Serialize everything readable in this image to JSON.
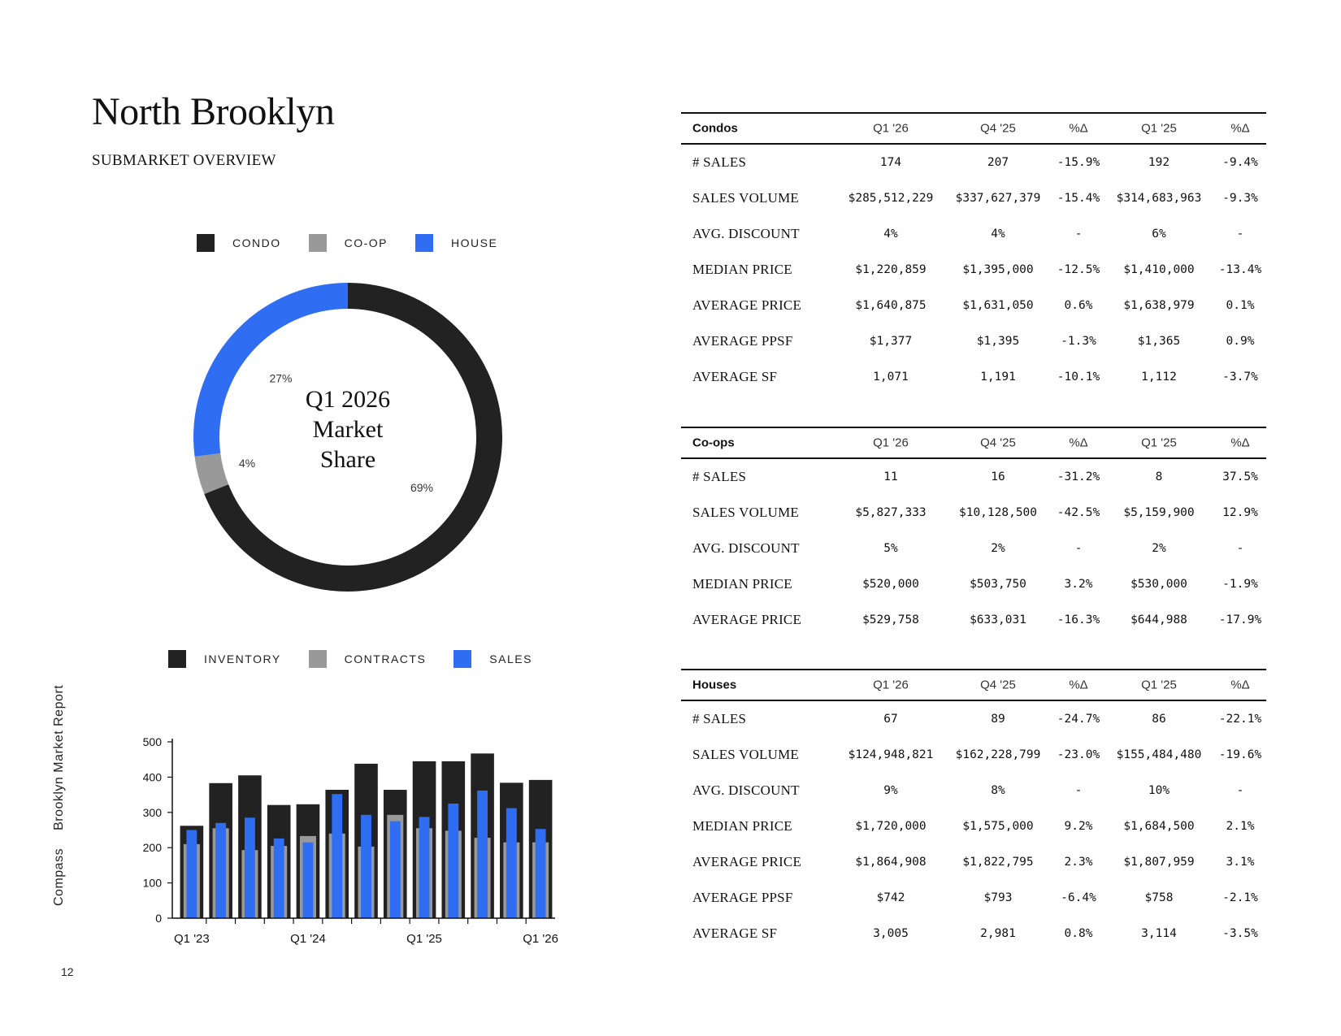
{
  "header": {
    "title": "North Brooklyn",
    "subtitle": "SUBMARKET OVERVIEW"
  },
  "colors": {
    "condo": "#222222",
    "coop": "#999999",
    "house": "#2f6ef2",
    "inventory": "#222222",
    "contracts": "#999999",
    "sales": "#2f6ef2"
  },
  "share_legend": [
    {
      "label": "CONDO",
      "color": "#222222"
    },
    {
      "label": "CO-OP",
      "color": "#999999"
    },
    {
      "label": "HOUSE",
      "color": "#2f6ef2"
    }
  ],
  "trend_legend": [
    {
      "label": "INVENTORY",
      "color": "#222222"
    },
    {
      "label": "CONTRACTS",
      "color": "#999999"
    },
    {
      "label": "SALES",
      "color": "#2f6ef2"
    }
  ],
  "chart_data": [
    {
      "type": "pie",
      "center_text": [
        "Q1 2026",
        "Market",
        "Share"
      ],
      "categories": [
        "CONDO",
        "CO-OP",
        "HOUSE"
      ],
      "values": [
        69,
        4,
        27
      ],
      "labels": [
        "69%",
        "4%",
        "27%"
      ],
      "colors": [
        "#222222",
        "#999999",
        "#2f6ef2"
      ],
      "legend_position": "top"
    },
    {
      "type": "bar",
      "categories": [
        "Q1 '23",
        "Q2 '23",
        "Q3 '23",
        "Q4 '23",
        "Q1 '24",
        "Q2 '24",
        "Q3 '24",
        "Q4 '24",
        "Q1 '25",
        "Q2 '25",
        "Q3 '25",
        "Q4 '25",
        "Q1 '26"
      ],
      "x_tick_labels": [
        "Q1 '23",
        "Q1 '24",
        "Q1 '25",
        "Q1 '26"
      ],
      "series": [
        {
          "name": "INVENTORY",
          "values": [
            262,
            383,
            405,
            321,
            323,
            364,
            438,
            364,
            445,
            445,
            467,
            384,
            392
          ]
        },
        {
          "name": "CONTRACTS",
          "values": [
            210,
            255,
            193,
            205,
            233,
            240,
            203,
            293,
            255,
            248,
            228,
            215,
            215
          ]
        },
        {
          "name": "SALES",
          "values": [
            250,
            270,
            285,
            226,
            215,
            352,
            293,
            275,
            287,
            325,
            362,
            312,
            253
          ]
        }
      ],
      "ylim": [
        0,
        500
      ],
      "yticks": [
        0,
        100,
        200,
        300,
        400,
        500
      ],
      "legend_position": "top",
      "grid": false
    }
  ],
  "tables": {
    "condos": {
      "headers": [
        "Condos",
        "Q1 '26",
        "Q4 '25",
        "%Δ",
        "Q1 '25",
        "%Δ"
      ],
      "rows": [
        [
          "# SALES",
          "174",
          "207",
          "-15.9%",
          "192",
          "-9.4%"
        ],
        [
          "SALES VOLUME",
          "$285,512,229",
          "$337,627,379",
          "-15.4%",
          "$314,683,963",
          "-9.3%"
        ],
        [
          "AVG. DISCOUNT",
          "4%",
          "4%",
          "-",
          "6%",
          "-"
        ],
        [
          "MEDIAN PRICE",
          "$1,220,859",
          "$1,395,000",
          "-12.5%",
          "$1,410,000",
          "-13.4%"
        ],
        [
          "AVERAGE PRICE",
          "$1,640,875",
          "$1,631,050",
          "0.6%",
          "$1,638,979",
          "0.1%"
        ],
        [
          "AVERAGE PPSF",
          "$1,377",
          "$1,395",
          "-1.3%",
          "$1,365",
          "0.9%"
        ],
        [
          "AVERAGE SF",
          "1,071",
          "1,191",
          "-10.1%",
          "1,112",
          "-3.7%"
        ]
      ]
    },
    "coops": {
      "headers": [
        "Co-ops",
        "Q1 '26",
        "Q4 '25",
        "%Δ",
        "Q1 '25",
        "%Δ"
      ],
      "rows": [
        [
          "# SALES",
          "11",
          "16",
          "-31.2%",
          "8",
          "37.5%"
        ],
        [
          "SALES VOLUME",
          "$5,827,333",
          "$10,128,500",
          "-42.5%",
          "$5,159,900",
          "12.9%"
        ],
        [
          "AVG. DISCOUNT",
          "5%",
          "2%",
          "-",
          "2%",
          "-"
        ],
        [
          "MEDIAN PRICE",
          "$520,000",
          "$503,750",
          "3.2%",
          "$530,000",
          "-1.9%"
        ],
        [
          "AVERAGE PRICE",
          "$529,758",
          "$633,031",
          "-16.3%",
          "$644,988",
          "-17.9%"
        ]
      ]
    },
    "houses": {
      "headers": [
        "Houses",
        "Q1 '26",
        "Q4 '25",
        "%Δ",
        "Q1 '25",
        "%Δ"
      ],
      "rows": [
        [
          "# SALES",
          "67",
          "89",
          "-24.7%",
          "86",
          "-22.1%"
        ],
        [
          "SALES VOLUME",
          "$124,948,821",
          "$162,228,799",
          "-23.0%",
          "$155,484,480",
          "-19.6%"
        ],
        [
          "AVG. DISCOUNT",
          "9%",
          "8%",
          "-",
          "10%",
          "-"
        ],
        [
          "MEDIAN PRICE",
          "$1,720,000",
          "$1,575,000",
          "9.2%",
          "$1,684,500",
          "2.1%"
        ],
        [
          "AVERAGE PRICE",
          "$1,864,908",
          "$1,822,795",
          "2.3%",
          "$1,807,959",
          "3.1%"
        ],
        [
          "AVERAGE PPSF",
          "$742",
          "$793",
          "-6.4%",
          "$758",
          "-2.1%"
        ],
        [
          "AVERAGE SF",
          "3,005",
          "2,981",
          "0.8%",
          "3,114",
          "-3.5%"
        ]
      ]
    }
  },
  "sidebar": {
    "brand": "Compass",
    "report": "Brooklyn Market Report"
  },
  "footer": {
    "page_number": "12"
  }
}
